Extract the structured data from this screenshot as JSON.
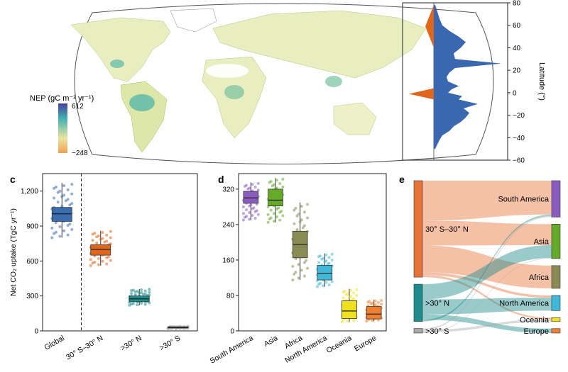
{
  "colors": {
    "nep_high": "#4a3fa0",
    "nep_mid": "#40b0b0",
    "nep_low_mid": "#e8e6a0",
    "nep_low": "#f0a050",
    "lat_positive": "#3a68b0",
    "lat_negative": "#e0661c",
    "land": "#eef0c8",
    "ocean": "#ffffff"
  },
  "map": {
    "colorbar_title": "NEP (gC m⁻² yr⁻¹)",
    "colorbar_max": "612",
    "colorbar_min": "−248"
  },
  "chart_data": [
    {
      "panel": "b",
      "type": "area",
      "ylabel": "Latitude (°)",
      "ylim": [
        -60,
        80
      ],
      "yticks": [
        "80",
        "60",
        "40",
        "20",
        "0",
        "−20",
        "−40",
        "−60"
      ],
      "note": "horizontal profile of NEP by latitude",
      "latitude": [
        78,
        72,
        66,
        60,
        55,
        50,
        45,
        40,
        35,
        30,
        26,
        22,
        18,
        14,
        10,
        6,
        3,
        0,
        -3,
        -6,
        -10,
        -14,
        -18,
        -22,
        -26,
        -30,
        -34,
        -38,
        -42,
        -46,
        -50
      ],
      "nep_relative": [
        0.02,
        0.05,
        0.08,
        0.12,
        0.22,
        0.35,
        0.45,
        0.38,
        0.28,
        0.3,
        0.95,
        0.3,
        0.22,
        0.18,
        0.2,
        0.35,
        0.25,
        0.2,
        0.4,
        0.35,
        0.62,
        0.42,
        0.5,
        0.45,
        0.38,
        0.28,
        0.22,
        0.12,
        0.08,
        0.05,
        0.02
      ],
      "negative_segments": [
        {
          "lat_from": 40,
          "lat_to": 78,
          "magnitude": 0.12
        },
        {
          "lat_from": -6,
          "lat_to": 4,
          "magnitude": 0.35
        }
      ]
    },
    {
      "panel": "c",
      "type": "box",
      "ylabel": "Net CO₂ uptake (TgC yr⁻¹)",
      "ylim": [
        0,
        1350
      ],
      "yticks": [
        "0",
        "300",
        "600",
        "900",
        "1,200"
      ],
      "categories": [
        "Global",
        "30° S–30° N",
        ">30° N",
        ">30° S"
      ],
      "q1": [
        940,
        650,
        250,
        25
      ],
      "median": [
        1005,
        700,
        275,
        30
      ],
      "q3": [
        1060,
        740,
        300,
        35
      ],
      "whisker_low": [
        800,
        560,
        220,
        18
      ],
      "whisker_high": [
        1270,
        860,
        360,
        40
      ],
      "colors": [
        "#3a6cb0",
        "#e0661c",
        "#1c8c8c",
        "#aaaaaa"
      ],
      "divider_after": 0
    },
    {
      "panel": "d",
      "type": "box",
      "ylim": [
        0,
        355
      ],
      "yticks": [
        "0",
        "80",
        "160",
        "240",
        "320"
      ],
      "categories": [
        "South America",
        "Asia",
        "Africa",
        "North America",
        "Oceania",
        "Europe"
      ],
      "q1": [
        288,
        282,
        165,
        115,
        28,
        27
      ],
      "median": [
        300,
        295,
        195,
        130,
        45,
        38
      ],
      "q3": [
        315,
        320,
        225,
        148,
        68,
        55
      ],
      "whisker_low": [
        250,
        245,
        115,
        100,
        20,
        22
      ],
      "whisker_high": [
        335,
        345,
        290,
        175,
        95,
        70
      ],
      "colors": [
        "#8a5cc0",
        "#66aa2a",
        "#8a8a55",
        "#40b8d8",
        "#f0e020",
        "#f08030"
      ]
    },
    {
      "panel": "e",
      "type": "sankey",
      "sources": [
        {
          "label": "30° S–30° N",
          "color": "#e6733a"
        },
        {
          "label": ">30° N",
          "color": "#1c8c8c"
        },
        {
          "label": ">30° S",
          "color": "#aaaaaa"
        }
      ],
      "targets": [
        {
          "label": "South America",
          "color": "#8a5cc0"
        },
        {
          "label": "Asia",
          "color": "#66aa2a"
        },
        {
          "label": "Africa",
          "color": "#8a8a55"
        },
        {
          "label": "North America",
          "color": "#40b8d8"
        },
        {
          "label": "Oceania",
          "color": "#f0e020"
        },
        {
          "label": "Europe",
          "color": "#f08030"
        }
      ],
      "flows": [
        {
          "from": 0,
          "to": 0,
          "value": 290
        },
        {
          "from": 0,
          "to": 1,
          "value": 180
        },
        {
          "from": 0,
          "to": 2,
          "value": 195
        },
        {
          "from": 0,
          "to": 3,
          "value": 20
        },
        {
          "from": 0,
          "to": 4,
          "value": 15
        },
        {
          "from": 1,
          "to": 1,
          "value": 110
        },
        {
          "from": 1,
          "to": 3,
          "value": 110
        },
        {
          "from": 1,
          "to": 5,
          "value": 38
        },
        {
          "from": 1,
          "to": 0,
          "value": 12
        },
        {
          "from": 2,
          "to": 0,
          "value": 10
        },
        {
          "from": 2,
          "to": 4,
          "value": 18
        },
        {
          "from": 2,
          "to": 1,
          "value": 5
        }
      ]
    }
  ],
  "panels": {
    "c": "c",
    "d": "d",
    "e": "e"
  }
}
